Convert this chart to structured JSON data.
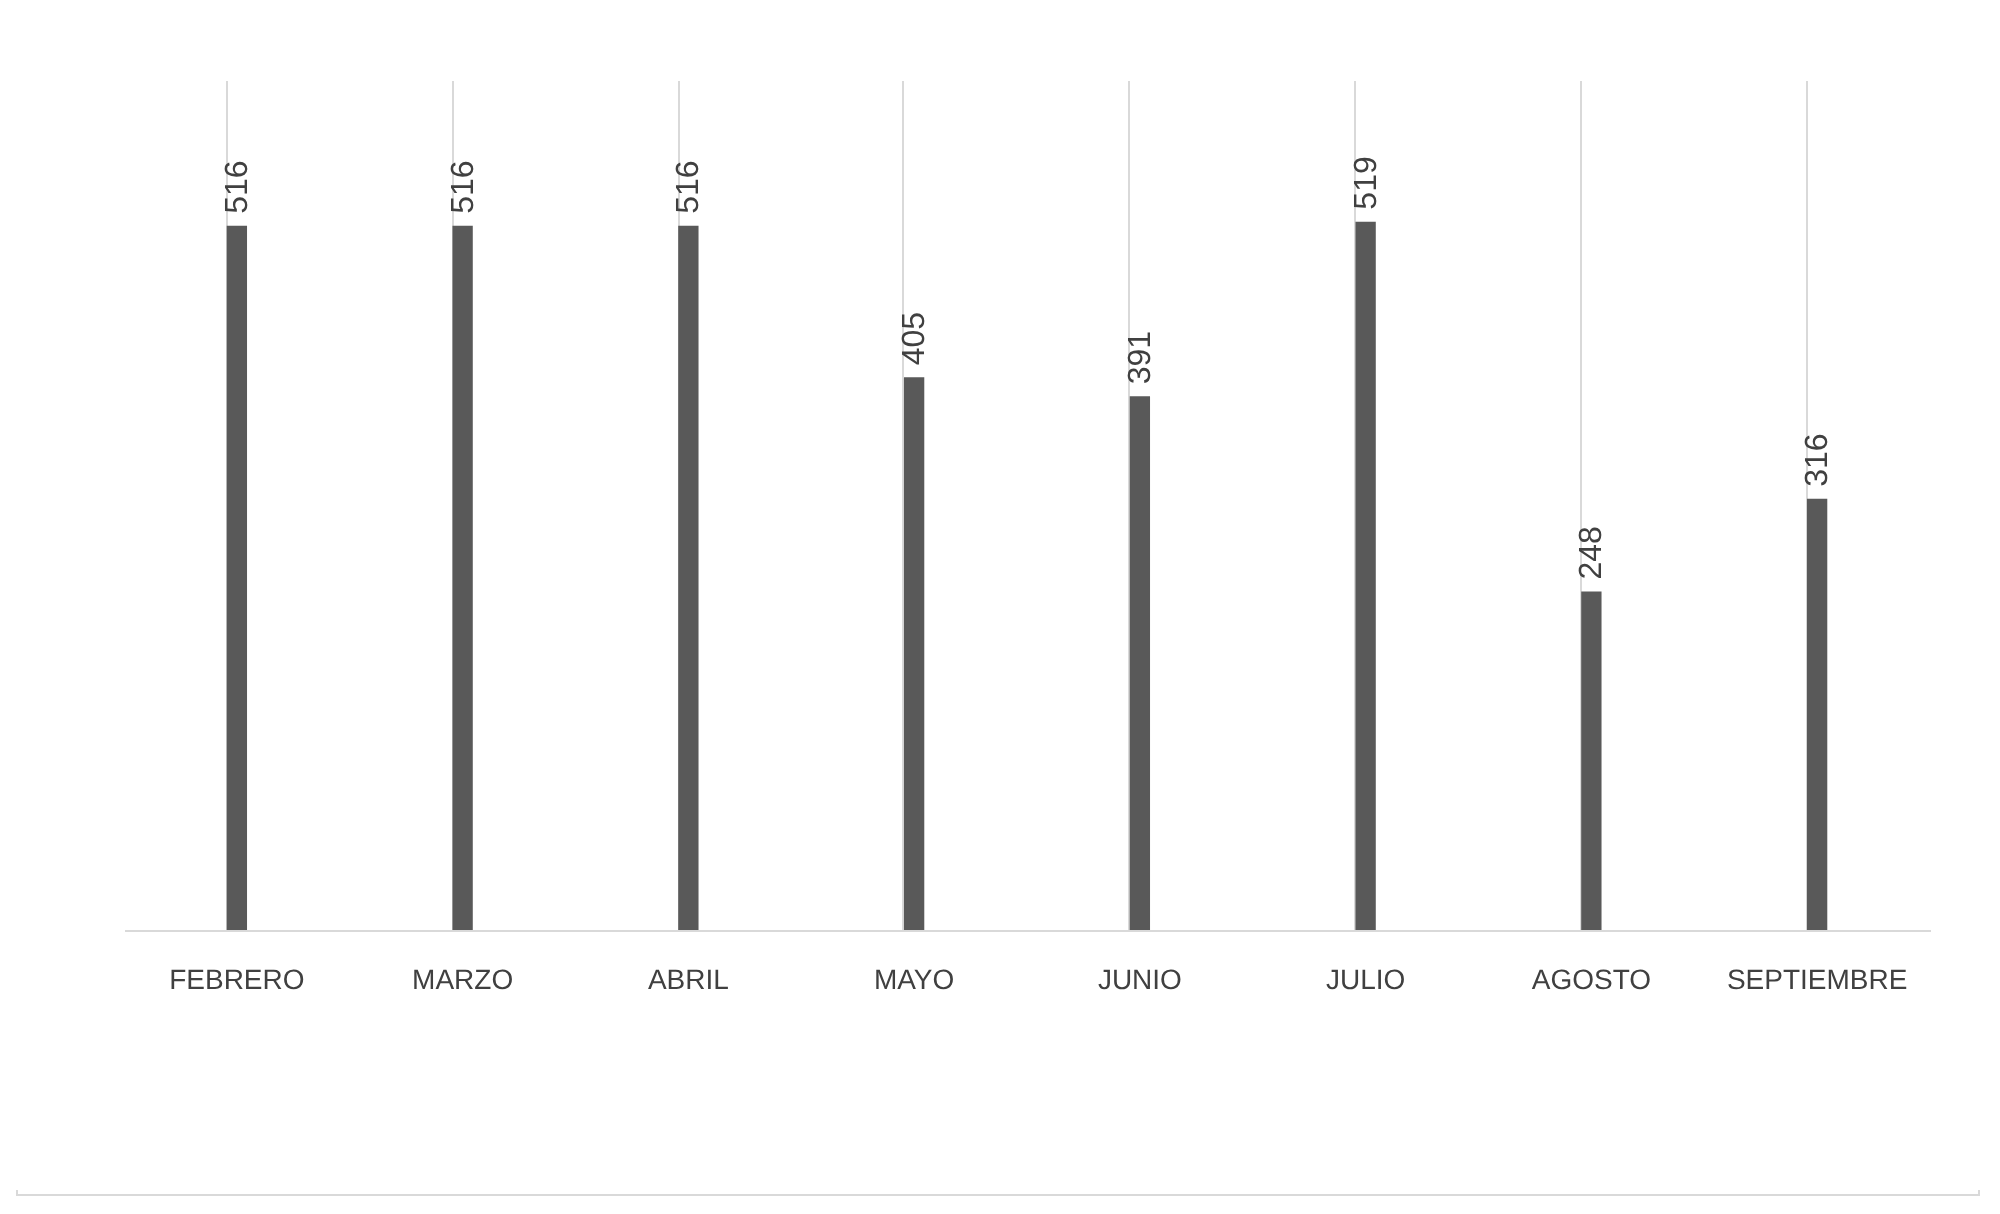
{
  "chart_data": {
    "type": "bar",
    "categories": [
      "FEBRERO",
      "MARZO",
      "ABRIL",
      "MAYO",
      "JUNIO",
      "JULIO",
      "AGOSTO",
      "SEPTIEMBRE"
    ],
    "values": [
      516,
      516,
      516,
      405,
      391,
      519,
      248,
      316
    ],
    "color": "#595959",
    "data_labels": true,
    "grid": "x"
  }
}
